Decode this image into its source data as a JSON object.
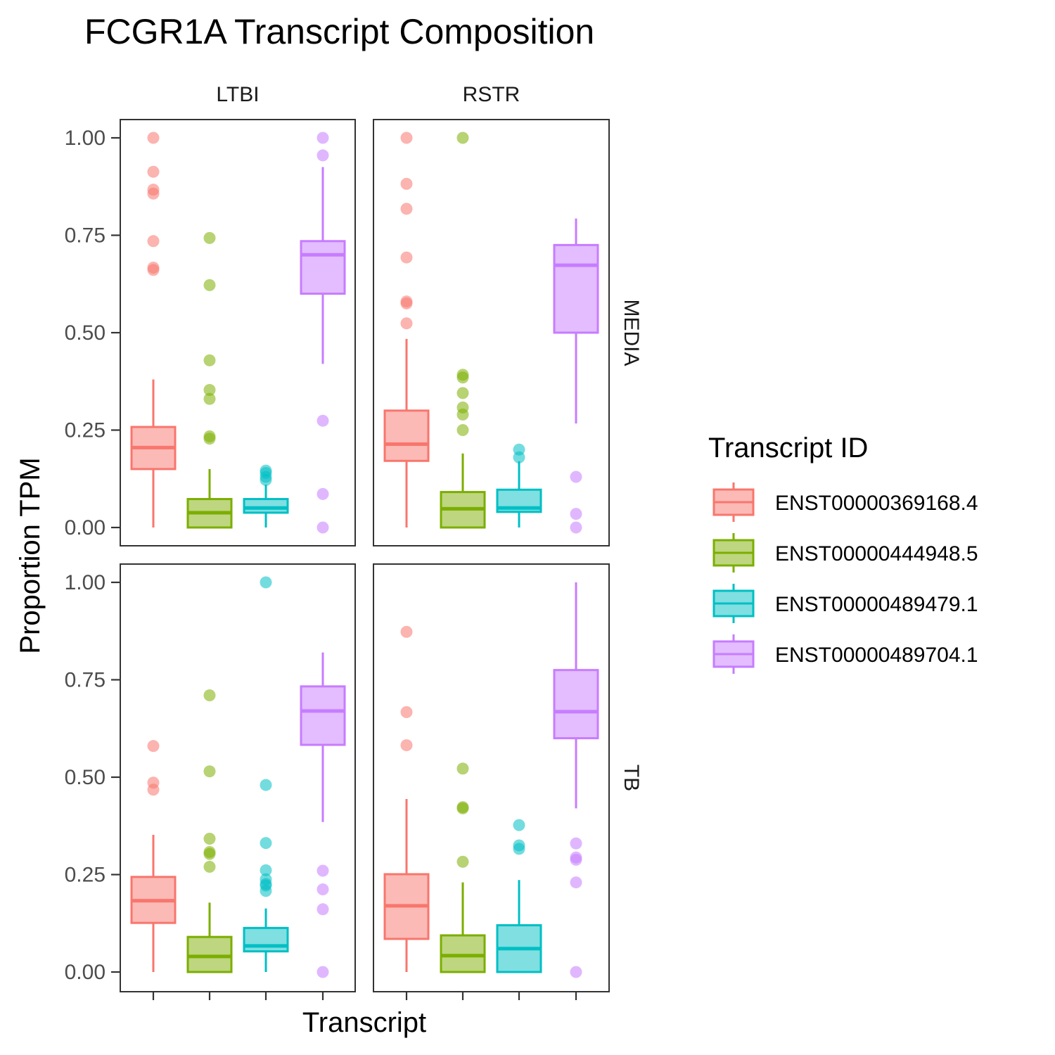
{
  "chart_data": {
    "type": "box",
    "title": "FCGR1A Transcript Composition",
    "xlabel": "Transcript",
    "ylabel": "Proportion TPM",
    "ylim": [
      0,
      1
    ],
    "yticks": [
      "0.00",
      "0.25",
      "0.50",
      "0.75",
      "1.00"
    ],
    "col_facets": [
      "LTBI",
      "RSTR"
    ],
    "row_facets": [
      "MEDIA",
      "TB"
    ],
    "grid": false,
    "legend": {
      "title": "Transcript ID",
      "placement": "right"
    },
    "series": [
      {
        "name": "ENST00000369168.4",
        "color": "#F8766D"
      },
      {
        "name": "ENST00000444948.5",
        "color": "#7CAE00"
      },
      {
        "name": "ENST00000489479.1",
        "color": "#00BFC4"
      },
      {
        "name": "ENST00000489704.1",
        "color": "#C77CFF"
      }
    ],
    "panels": [
      {
        "col": "LTBI",
        "row": "MEDIA",
        "boxes": [
          {
            "series": 0,
            "whisker_low": 0.0,
            "q1": 0.15,
            "median": 0.205,
            "q3": 0.258,
            "whisker_high": 0.38,
            "outliers": [
              1.0,
              0.913,
              0.867,
              0.857,
              0.735,
              0.667,
              0.661
            ]
          },
          {
            "series": 1,
            "whisker_low": 0.0,
            "q1": 0.0,
            "median": 0.038,
            "q3": 0.073,
            "whisker_high": 0.15,
            "outliers": [
              0.743,
              0.622,
              0.429,
              0.353,
              0.33,
              0.234,
              0.228
            ]
          },
          {
            "series": 2,
            "whisker_low": 0.0,
            "q1": 0.038,
            "median": 0.05,
            "q3": 0.073,
            "whisker_high": 0.11,
            "outliers": [
              0.146,
              0.14,
              0.13,
              0.122
            ]
          },
          {
            "series": 3,
            "whisker_low": 0.42,
            "q1": 0.6,
            "median": 0.7,
            "q3": 0.735,
            "whisker_high": 0.925,
            "outliers": [
              1.0,
              0.955,
              0.274,
              0.086,
              0.0
            ]
          }
        ]
      },
      {
        "col": "RSTR",
        "row": "MEDIA",
        "boxes": [
          {
            "series": 0,
            "whisker_low": 0.0,
            "q1": 0.171,
            "median": 0.214,
            "q3": 0.3,
            "whisker_high": 0.484,
            "outliers": [
              1.0,
              0.882,
              0.818,
              0.693,
              0.58,
              0.575,
              0.524
            ]
          },
          {
            "series": 1,
            "whisker_low": 0.0,
            "q1": 0.0,
            "median": 0.048,
            "q3": 0.091,
            "whisker_high": 0.19,
            "outliers": [
              1.0,
              0.392,
              0.385,
              0.345,
              0.308,
              0.29,
              0.25
            ]
          },
          {
            "series": 2,
            "whisker_low": 0.0,
            "q1": 0.04,
            "median": 0.05,
            "q3": 0.097,
            "whisker_high": 0.17,
            "outliers": [
              0.2,
              0.18
            ]
          },
          {
            "series": 3,
            "whisker_low": 0.267,
            "q1": 0.5,
            "median": 0.673,
            "q3": 0.725,
            "whisker_high": 0.793,
            "outliers": [
              0.13,
              0.035,
              0.0
            ]
          }
        ]
      },
      {
        "col": "LTBI",
        "row": "TB",
        "boxes": [
          {
            "series": 0,
            "whisker_low": 0.0,
            "q1": 0.126,
            "median": 0.183,
            "q3": 0.244,
            "whisker_high": 0.352,
            "outliers": [
              0.58,
              0.486,
              0.468
            ]
          },
          {
            "series": 1,
            "whisker_low": 0.0,
            "q1": 0.0,
            "median": 0.04,
            "q3": 0.09,
            "whisker_high": 0.178,
            "outliers": [
              0.71,
              0.515,
              0.342,
              0.308,
              0.303,
              0.27
            ]
          },
          {
            "series": 2,
            "whisker_low": 0.0,
            "q1": 0.053,
            "median": 0.067,
            "q3": 0.113,
            "whisker_high": 0.163,
            "outliers": [
              1.0,
              0.48,
              0.331,
              0.261,
              0.238,
              0.226,
              0.222,
              0.208
            ]
          },
          {
            "series": 3,
            "whisker_low": 0.385,
            "q1": 0.583,
            "median": 0.67,
            "q3": 0.733,
            "whisker_high": 0.82,
            "outliers": [
              0.26,
              0.212,
              0.161,
              0.0
            ]
          }
        ]
      },
      {
        "col": "RSTR",
        "row": "TB",
        "boxes": [
          {
            "series": 0,
            "whisker_low": 0.0,
            "q1": 0.085,
            "median": 0.17,
            "q3": 0.251,
            "whisker_high": 0.444,
            "outliers": [
              0.873,
              0.667,
              0.582
            ]
          },
          {
            "series": 1,
            "whisker_low": 0.0,
            "q1": 0.0,
            "median": 0.042,
            "q3": 0.094,
            "whisker_high": 0.23,
            "outliers": [
              0.522,
              0.423,
              0.42,
              0.283
            ]
          },
          {
            "series": 2,
            "whisker_low": 0.0,
            "q1": 0.0,
            "median": 0.06,
            "q3": 0.12,
            "whisker_high": 0.236,
            "outliers": [
              0.377,
              0.325,
              0.316
            ]
          },
          {
            "series": 3,
            "whisker_low": 0.42,
            "q1": 0.6,
            "median": 0.668,
            "q3": 0.775,
            "whisker_high": 1.0,
            "outliers": [
              0.33,
              0.294,
              0.288,
              0.23,
              0.0
            ]
          }
        ]
      }
    ]
  }
}
